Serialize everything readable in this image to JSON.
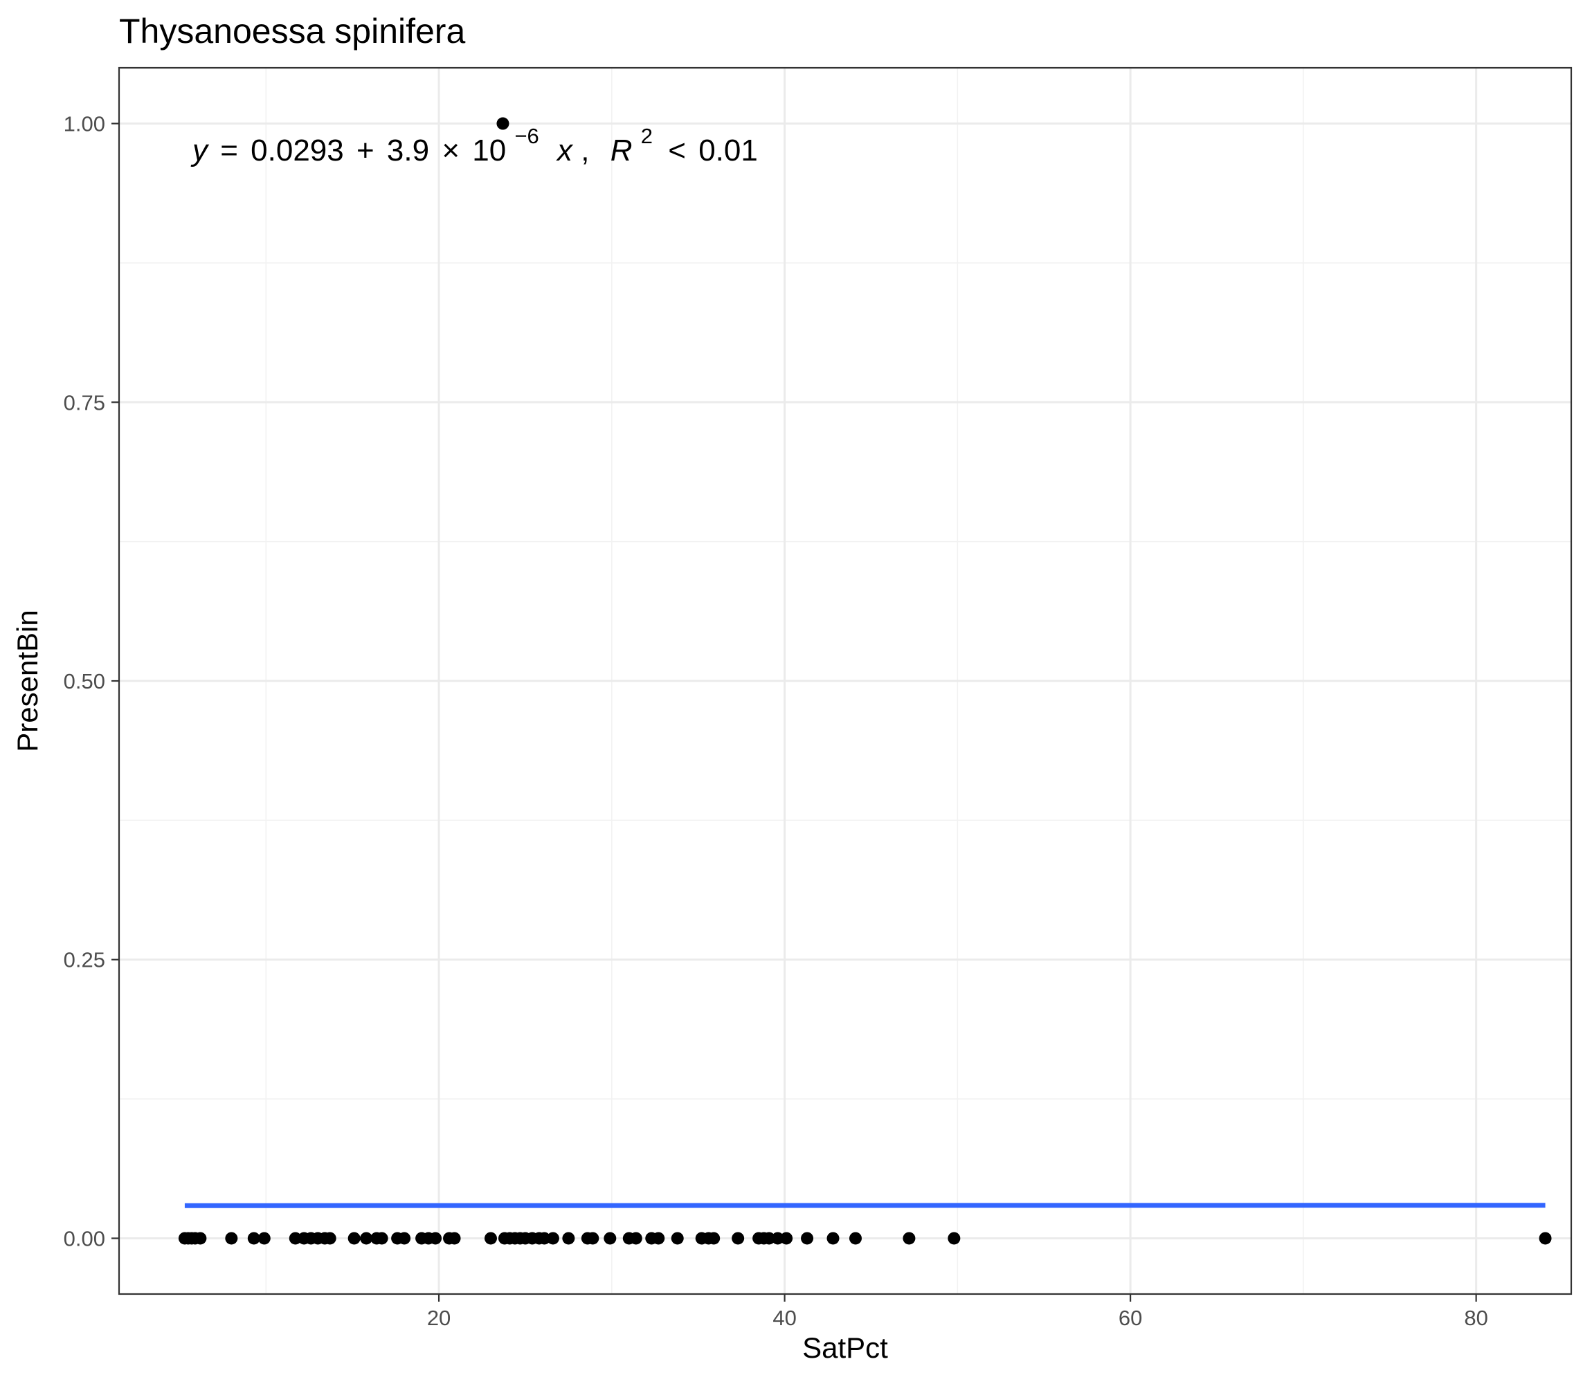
{
  "chart_data": {
    "type": "scatter",
    "title": "Thysanoessa spinifera",
    "xlabel": "SatPct",
    "ylabel": "PresentBin",
    "xlim": [
      1.5,
      85.5
    ],
    "ylim": [
      -0.05,
      1.05
    ],
    "x_ticks": [
      20,
      40,
      60,
      80
    ],
    "x_tick_labels": [
      "20",
      "40",
      "60",
      "80"
    ],
    "y_ticks": [
      0,
      0.25,
      0.5,
      0.75,
      1
    ],
    "y_tick_labels": [
      "0.00",
      "0.25",
      "0.50",
      "0.75",
      "1.00"
    ],
    "grid": true,
    "points": {
      "color": "#000000",
      "x": [
        5.3,
        5.5,
        5.7,
        5.9,
        6.2,
        8.0,
        9.3,
        9.9,
        11.7,
        12.2,
        12.6,
        13.0,
        13.4,
        13.7,
        15.1,
        15.8,
        16.4,
        16.7,
        17.6,
        18.0,
        19.0,
        19.4,
        19.8,
        20.6,
        20.9,
        23.0,
        23.8,
        24.1,
        24.4,
        24.7,
        25.0,
        25.4,
        25.8,
        26.1,
        26.6,
        27.5,
        28.6,
        28.9,
        29.9,
        31.0,
        31.4,
        32.3,
        32.7,
        33.8,
        35.2,
        35.6,
        35.9,
        37.3,
        38.5,
        38.8,
        39.1,
        39.6,
        40.1,
        41.3,
        42.8,
        44.1,
        47.2,
        49.8,
        84.0,
        23.7
      ],
      "y": [
        0,
        0,
        0,
        0,
        0,
        0,
        0,
        0,
        0,
        0,
        0,
        0,
        0,
        0,
        0,
        0,
        0,
        0,
        0,
        0,
        0,
        0,
        0,
        0,
        0,
        0,
        0,
        0,
        0,
        0,
        0,
        0,
        0,
        0,
        0,
        0,
        0,
        0,
        0,
        0,
        0,
        0,
        0,
        0,
        0,
        0,
        0,
        0,
        0,
        0,
        0,
        0,
        0,
        0,
        0,
        0,
        0,
        0,
        0,
        1
      ]
    },
    "fit_line": {
      "color": "#3366ff",
      "x": [
        5.3,
        84.0
      ],
      "y": [
        0.02932,
        0.02963
      ]
    },
    "annotation": {
      "lhs": "y",
      "eq_sign": "=",
      "intercept": "0.0293",
      "plus": "+",
      "coef": "3.9",
      "times": "×",
      "base": "10",
      "exponent": "−6",
      "var": "x",
      "comma": ",",
      "r_letter": "R",
      "r_exp": "2",
      "lt": "<",
      "r2": "0.01"
    }
  }
}
